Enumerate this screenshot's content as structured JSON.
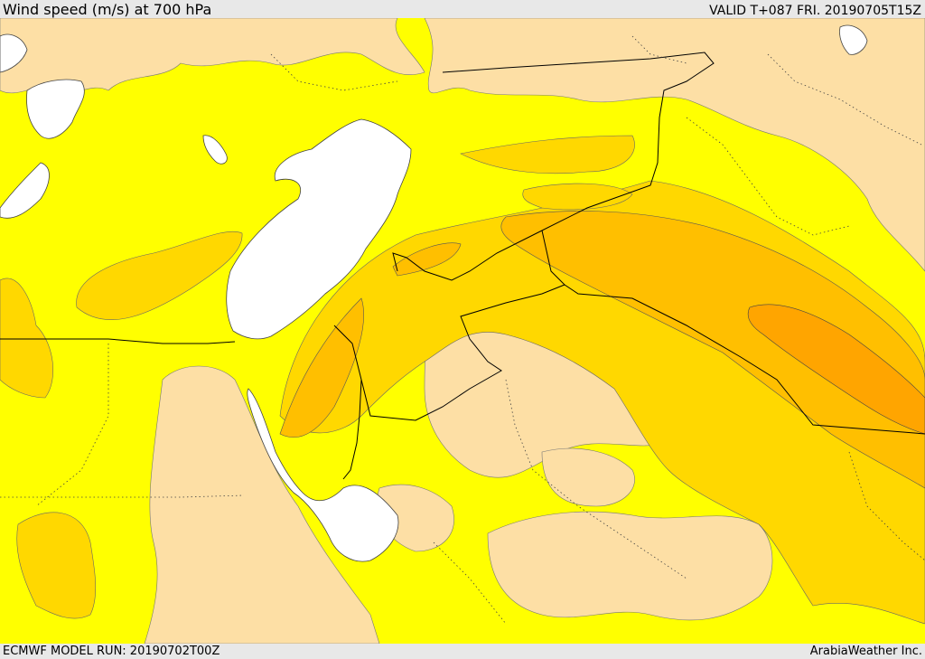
{
  "header": {
    "title": "Wind speed (m/s) at 700 hPa",
    "valid": "VALID T+087 FRI. 20190705T15Z"
  },
  "footer": {
    "model_run": "ECMWF MODEL RUN: 20190702T00Z",
    "credit": "ArabiaWeather Inc."
  },
  "colors": {
    "background": "#ffff00",
    "light_tan": "#fddfa5",
    "gold": "#ffd800",
    "orange_light": "#ffbf00",
    "orange_mid": "#ffa500",
    "sea": "#ffffff"
  }
}
